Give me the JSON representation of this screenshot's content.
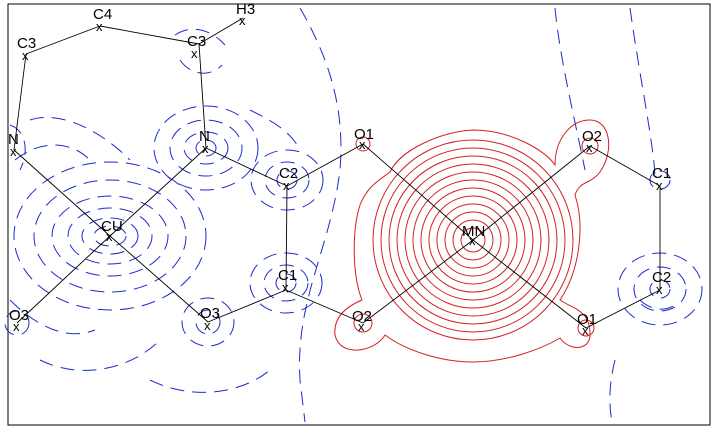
{
  "colors": {
    "positive_contour": "#d42020",
    "negative_contour": "#1a2bd0",
    "bond": "#000000"
  },
  "atoms": [
    {
      "id": "c4",
      "label": "C4"
    },
    {
      "id": "h3",
      "label": "H3"
    },
    {
      "id": "c3-left",
      "label": "C3"
    },
    {
      "id": "c3-right",
      "label": "C3"
    },
    {
      "id": "n-left",
      "label": "N"
    },
    {
      "id": "n-right",
      "label": "N"
    },
    {
      "id": "cu",
      "label": "CU"
    },
    {
      "id": "o3-left",
      "label": "O3"
    },
    {
      "id": "o3-right",
      "label": "O3"
    },
    {
      "id": "c2-left",
      "label": "C2"
    },
    {
      "id": "c1-left",
      "label": "C1"
    },
    {
      "id": "o1-top",
      "label": "O1"
    },
    {
      "id": "o2-bottom",
      "label": "O2"
    },
    {
      "id": "mn",
      "label": "MN"
    },
    {
      "id": "o2-top",
      "label": "O2"
    },
    {
      "id": "o1-bottom",
      "label": "O1"
    },
    {
      "id": "c1-right",
      "label": "C1"
    },
    {
      "id": "c2-right",
      "label": "C2"
    }
  ],
  "marker_symbol": "x"
}
